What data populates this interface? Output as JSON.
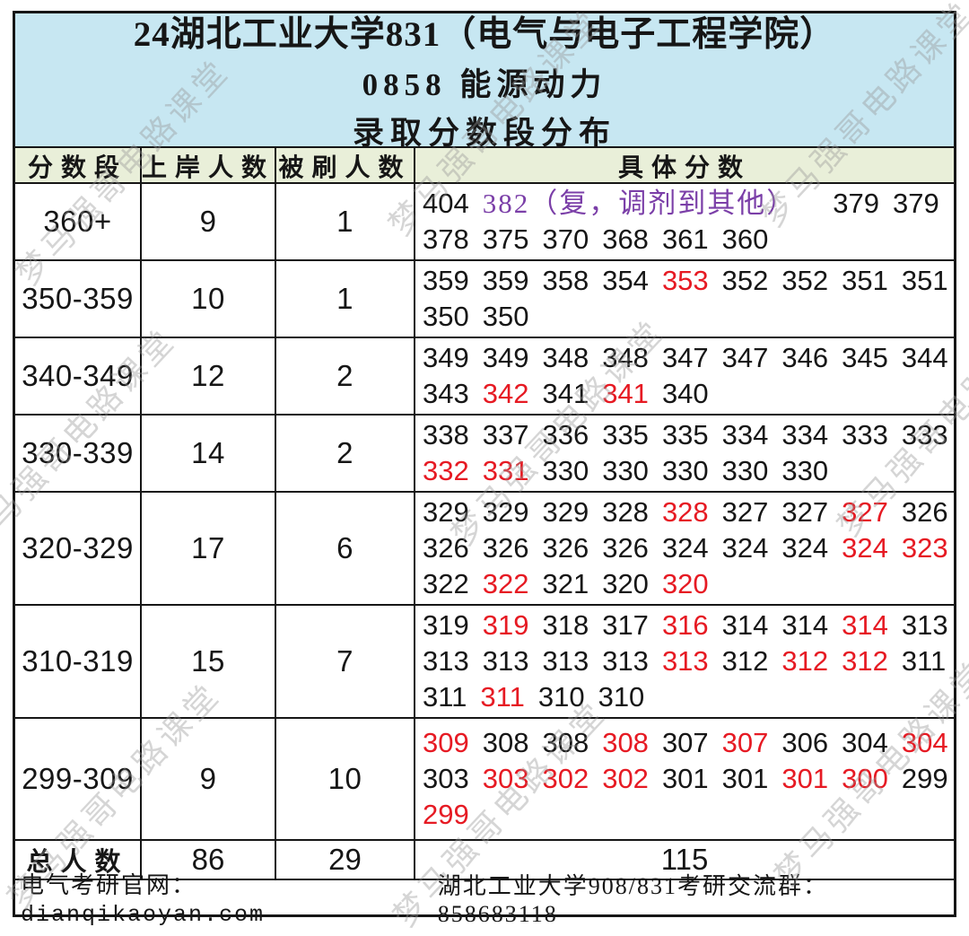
{
  "header": {
    "title_line1": "24湖北工业大学831（电气与电子工程学院）",
    "title_line2": "0858 能源动力",
    "title_line3": "录取分数段分布"
  },
  "columns": {
    "score_range": "分数段",
    "admitted": "上岸人数",
    "rejected": "被刷人数",
    "detail_scores": "具体分数"
  },
  "colors": {
    "red": "#e61a23",
    "purple": "#7b3fa8",
    "header_bg": "#c7e7f2",
    "colheader_bg": "#e9efd9"
  },
  "watermark_text": "梦马强哥电路课堂",
  "rows": [
    {
      "range": "360+",
      "admitted": "9",
      "rejected": "1",
      "score_lines": [
        [
          [
            "404"
          ],
          [
            "382（复，调剂到其他）",
            "p",
            "gap"
          ],
          [
            "379"
          ],
          [
            "379"
          ]
        ],
        [
          [
            "378"
          ],
          [
            "375"
          ],
          [
            "370"
          ],
          [
            "368"
          ],
          [
            "361"
          ],
          [
            "360"
          ]
        ]
      ]
    },
    {
      "range": "350-359",
      "admitted": "10",
      "rejected": "1",
      "score_lines": [
        [
          [
            "359"
          ],
          [
            "359"
          ],
          [
            "358"
          ],
          [
            "354"
          ],
          [
            "353",
            "r"
          ],
          [
            "352"
          ],
          [
            "352"
          ],
          [
            "351"
          ],
          [
            "351"
          ]
        ],
        [
          [
            "350"
          ],
          [
            "350"
          ]
        ]
      ]
    },
    {
      "range": "340-349",
      "admitted": "12",
      "rejected": "2",
      "score_lines": [
        [
          [
            "349"
          ],
          [
            "349"
          ],
          [
            "348"
          ],
          [
            "348"
          ],
          [
            "347"
          ],
          [
            "347"
          ],
          [
            "346"
          ],
          [
            "345"
          ],
          [
            "344"
          ]
        ],
        [
          [
            "343"
          ],
          [
            "342",
            "r"
          ],
          [
            "341"
          ],
          [
            "341",
            "r"
          ],
          [
            "340"
          ]
        ]
      ]
    },
    {
      "range": "330-339",
      "admitted": "14",
      "rejected": "2",
      "score_lines": [
        [
          [
            "338"
          ],
          [
            "337"
          ],
          [
            "336"
          ],
          [
            "335"
          ],
          [
            "335"
          ],
          [
            "334"
          ],
          [
            "334"
          ],
          [
            "333"
          ],
          [
            "333"
          ]
        ],
        [
          [
            "332",
            "r"
          ],
          [
            "331",
            "r"
          ],
          [
            "330"
          ],
          [
            "330"
          ],
          [
            "330"
          ],
          [
            "330"
          ],
          [
            "330"
          ]
        ]
      ]
    },
    {
      "range": "320-329",
      "admitted": "17",
      "rejected": "6",
      "score_lines": [
        [
          [
            "329"
          ],
          [
            "329"
          ],
          [
            "329"
          ],
          [
            "328"
          ],
          [
            "328",
            "r"
          ],
          [
            "327"
          ],
          [
            "327"
          ],
          [
            "327",
            "r"
          ],
          [
            "326"
          ]
        ],
        [
          [
            "326"
          ],
          [
            "326"
          ],
          [
            "326"
          ],
          [
            "326"
          ],
          [
            "324"
          ],
          [
            "324"
          ],
          [
            "324"
          ],
          [
            "324",
            "r"
          ],
          [
            "323",
            "r"
          ]
        ],
        [
          [
            "322"
          ],
          [
            "322",
            "r"
          ],
          [
            "321"
          ],
          [
            "320"
          ],
          [
            "320",
            "r"
          ]
        ]
      ]
    },
    {
      "range": "310-319",
      "admitted": "15",
      "rejected": "7",
      "score_lines": [
        [
          [
            "319"
          ],
          [
            "319",
            "r"
          ],
          [
            "318"
          ],
          [
            "317"
          ],
          [
            "316",
            "r"
          ],
          [
            "314"
          ],
          [
            "314"
          ],
          [
            "314",
            "r"
          ],
          [
            "313"
          ]
        ],
        [
          [
            "313"
          ],
          [
            "313"
          ],
          [
            "313"
          ],
          [
            "313"
          ],
          [
            "313",
            "r"
          ],
          [
            "312"
          ],
          [
            "312",
            "r"
          ],
          [
            "312",
            "r"
          ],
          [
            "311"
          ]
        ],
        [
          [
            "311"
          ],
          [
            "311",
            "r"
          ],
          [
            "310"
          ],
          [
            "310"
          ]
        ]
      ]
    },
    {
      "range": "299-309",
      "admitted": "9",
      "rejected": "10",
      "score_lines": [
        [
          [
            "309",
            "r"
          ],
          [
            "308"
          ],
          [
            "308"
          ],
          [
            "308",
            "r"
          ],
          [
            "307"
          ],
          [
            "307",
            "r"
          ],
          [
            "306"
          ],
          [
            "304"
          ],
          [
            "304",
            "r"
          ]
        ],
        [
          [
            "303"
          ],
          [
            "303",
            "r"
          ],
          [
            "302",
            "r"
          ],
          [
            "302",
            "r"
          ],
          [
            "301"
          ],
          [
            "301"
          ],
          [
            "301",
            "r"
          ],
          [
            "300",
            "r"
          ],
          [
            "299"
          ]
        ],
        [
          [
            "299",
            "r"
          ]
        ]
      ]
    }
  ],
  "total": {
    "label": "总人数",
    "admitted": "86",
    "rejected": "29",
    "scores_count": "115"
  },
  "footer": {
    "left_prefix": "电气考研官网：",
    "left_url": "dianqikaoyan.com",
    "right": "湖北工业大学908/831考研交流群：858683118"
  }
}
